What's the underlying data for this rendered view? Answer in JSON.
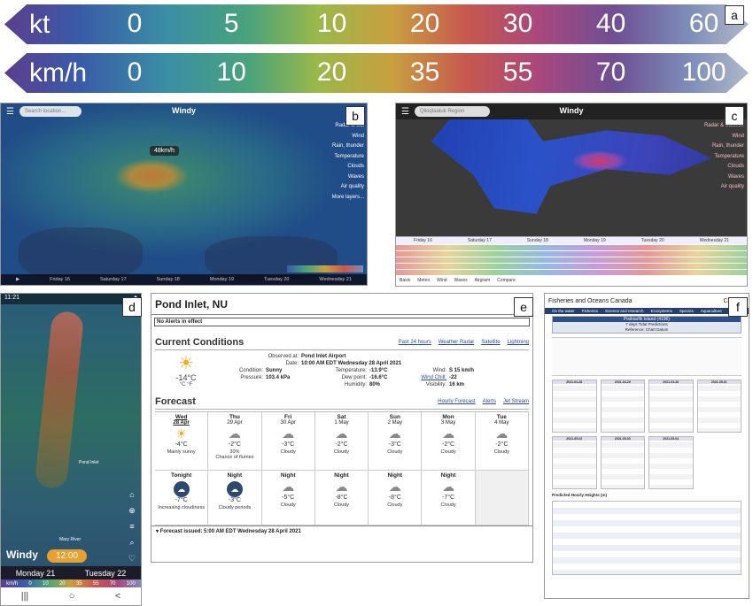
{
  "scales": {
    "kt": {
      "unit": "kt",
      "ticks": [
        "0",
        "5",
        "10",
        "20",
        "30",
        "40",
        "60"
      ]
    },
    "kmh": {
      "unit": "km/h",
      "ticks": [
        "0",
        "10",
        "20",
        "35",
        "55",
        "70",
        "100"
      ]
    }
  },
  "panel_labels": {
    "a": "a",
    "b": "b",
    "c": "c",
    "d": "d",
    "e": "e",
    "f": "f"
  },
  "windy_b": {
    "logo": "Windy",
    "search_placeholder": "Search location...",
    "wind_readout": "48km/h",
    "menu": [
      "Radar & Sat",
      "Wind",
      "Rain, thunder",
      "Temperature",
      "Clouds",
      "Waves",
      "Air quality",
      "More layers..."
    ],
    "timeline": [
      "Friday 16",
      "Saturday 17",
      "Sunday 18",
      "Monday 19",
      "Tuesday 20",
      "Wednesday 21"
    ]
  },
  "windy_c": {
    "logo": "Windy",
    "region": "Qikiqtaaluk Region",
    "menu": [
      "Radar & Satellite",
      "Wind",
      "Rain, thunder",
      "Temperature",
      "Clouds",
      "Waves",
      "Air quality"
    ],
    "days": [
      "Friday 16",
      "Saturday 17",
      "Sunday 18",
      "Monday 19",
      "Tuesday 20",
      "Wednesday 21"
    ],
    "tabs": [
      "Basic",
      "Meteo",
      "Wind",
      "Waves",
      "Airgram",
      "Compare"
    ]
  },
  "windy_d": {
    "status_time": "11:21",
    "logo": "Windy",
    "time_pill": "12:00",
    "days": [
      "Monday 21",
      "Tuesday 22"
    ],
    "place_1": "Pond Inlet",
    "place_2": "Mary River",
    "legend_unit": "km/h",
    "legend_ticks": [
      "0",
      "10",
      "20",
      "35",
      "55",
      "70",
      "100"
    ],
    "nav": [
      "|||",
      "○",
      "<"
    ]
  },
  "weather_e": {
    "title": "Pond Inlet, NU",
    "alert": "No Alerts in effect",
    "current": {
      "heading": "Current Conditions",
      "links": [
        "Past 24 hours",
        "Weather Radar",
        "Satellite",
        "Lightning"
      ],
      "temp": "-14°C",
      "units": "°C  °F",
      "observed_label": "Observed at:",
      "observed": "Pond Inlet Airport",
      "date_label": "Date:",
      "date": "10:00 AM EDT Wednesday 28 April 2021",
      "condition_label": "Condition:",
      "condition": "Sunny",
      "pressure_label": "Pressure:",
      "pressure": "103.4 kPa",
      "temperature_label": "Temperature:",
      "temperature": "-13.9°C",
      "dew_label": "Dew point:",
      "dew": "-16.6°C",
      "humidity_label": "Humidity:",
      "humidity": "80%",
      "wind_label": "Wind:",
      "wind": "S 15 km/h",
      "chill_label": "Wind Chill:",
      "chill": "-22",
      "visibility_label": "Visibility:",
      "visibility": "16 km"
    },
    "forecast": {
      "heading": "Forecast",
      "links": [
        "Hourly Forecast",
        "Alerts",
        "Jet Stream"
      ],
      "days": [
        {
          "day": "Wed",
          "date": "28 Apr",
          "temp": "-4°C",
          "summary": "Mainly sunny"
        },
        {
          "day": "Thu",
          "date": "29 Apr",
          "temp": "-2°C",
          "pop": "30%",
          "summary": "Chance of flurries"
        },
        {
          "day": "Fri",
          "date": "30 Apr",
          "temp": "-3°C",
          "summary": "Cloudy"
        },
        {
          "day": "Sat",
          "date": "1 May",
          "temp": "-2°C",
          "summary": "Cloudy"
        },
        {
          "day": "Sun",
          "date": "2 May",
          "temp": "-3°C",
          "summary": "Cloudy"
        },
        {
          "day": "Mon",
          "date": "3 May",
          "temp": "-2°C",
          "summary": "Cloudy"
        },
        {
          "day": "Tue",
          "date": "4 May",
          "temp": "-2°C",
          "summary": "Cloudy"
        }
      ],
      "nights": [
        {
          "label": "Tonight",
          "temp": "-7°C",
          "summary": "Increasing cloudiness"
        },
        {
          "label": "Night",
          "temp": "-3°C",
          "summary": "Cloudy periods"
        },
        {
          "label": "Night",
          "temp": "-5°C",
          "summary": "Cloudy"
        },
        {
          "label": "Night",
          "temp": "-8°C",
          "summary": "Cloudy"
        },
        {
          "label": "Night",
          "temp": "-8°C",
          "summary": "Cloudy"
        },
        {
          "label": "Night",
          "temp": "-7°C",
          "summary": "Cloudy"
        }
      ],
      "issued": "Forecast issued: 5:00 AM EDT Wednesday 28 April 2021"
    }
  },
  "dfo_f": {
    "org": "Fisheries and Oceans Canada",
    "brand": "Canada",
    "nav": [
      "On the water",
      "Fisheries",
      "Science and research",
      "Ecosystems",
      "Species",
      "Aquaculture",
      "Regions"
    ],
    "title": "Pisiktarfik Island (4196)",
    "subtitle": "7 days Tidal Predictions",
    "reference": "Reference: Chart Datum",
    "dates": [
      "2021-04-28",
      "2021-04-29",
      "2021-04-30",
      "2021-05-01",
      "2021-05-02",
      "2021-05-03",
      "2021-05-04"
    ],
    "hourly_label": "Predicted Hourly Heights (m)"
  }
}
